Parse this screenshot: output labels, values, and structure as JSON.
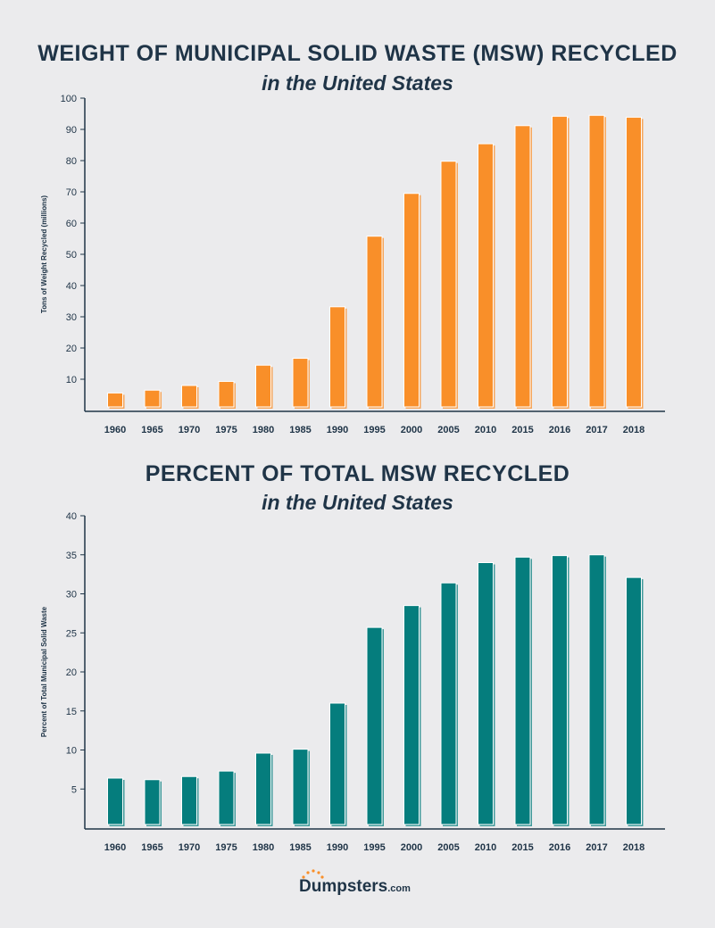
{
  "chart_data": [
    {
      "type": "bar",
      "title": "WEIGHT OF MUNICIPAL SOLID WASTE (MSW) RECYCLED",
      "subtitle": "in the United States",
      "xlabel": "",
      "ylabel": "Tons of Weight Recycled (millions)",
      "ylim": [
        0,
        100
      ],
      "yticks": [
        10,
        20,
        30,
        40,
        50,
        60,
        70,
        80,
        90,
        100
      ],
      "categories": [
        "1960",
        "1965",
        "1970",
        "1975",
        "1980",
        "1985",
        "1990",
        "1995",
        "2000",
        "2005",
        "2010",
        "2015",
        "2016",
        "2017",
        "2018"
      ],
      "values": [
        5.6,
        6.5,
        8.0,
        9.3,
        14.5,
        16.7,
        33.2,
        55.8,
        69.5,
        79.8,
        85.4,
        91.2,
        94.2,
        94.5,
        93.9
      ],
      "color": "#f98f29",
      "grid": false
    },
    {
      "type": "bar",
      "title": "PERCENT OF TOTAL MSW RECYCLED",
      "subtitle": "in the United States",
      "xlabel": "",
      "ylabel": "Percent of Total Municipal Solid Waste",
      "ylim": [
        0,
        40
      ],
      "yticks": [
        5,
        10,
        15,
        20,
        25,
        30,
        35,
        40
      ],
      "categories": [
        "1960",
        "1965",
        "1970",
        "1975",
        "1980",
        "1985",
        "1990",
        "1995",
        "2000",
        "2005",
        "2010",
        "2015",
        "2016",
        "2017",
        "2018"
      ],
      "values": [
        6.4,
        6.2,
        6.6,
        7.3,
        9.6,
        10.1,
        16.0,
        25.7,
        28.5,
        31.4,
        34.0,
        34.7,
        34.9,
        35.0,
        32.1
      ],
      "color": "#057d7d",
      "grid": false
    }
  ],
  "logo": {
    "text": "Dumpsters",
    "suffix": ".com"
  }
}
